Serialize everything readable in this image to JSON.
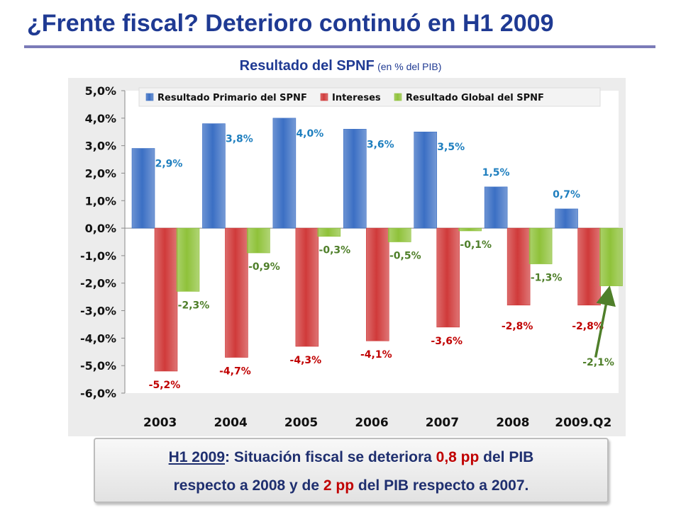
{
  "slide": {
    "title": "¿Frente fiscal? Deterioro continuó en H1 2009"
  },
  "callout": {
    "period": "H1 2009",
    "text1": ": Situación fiscal se deteriora ",
    "value1": "0,8 pp",
    "text2": " del PIB",
    "text3": "respecto a 2008 y de ",
    "value2": "2 pp",
    "text4": " del PIB respecto a 2007."
  },
  "colors": {
    "primario": "#3b6fc4",
    "intereses": "#d03a3a",
    "global": "#8fc23a",
    "label_primario": "#1f7fbf",
    "label_intereses": "#c00000",
    "label_global": "#4f7f2a",
    "arrow": "#4f7f2a"
  },
  "chart_data": {
    "type": "bar",
    "title": "Resultado del SPNF",
    "subtitle": "(en % del PIB)",
    "categories": [
      "2003",
      "2004",
      "2005",
      "2006",
      "2007",
      "2008",
      "2009.Q2"
    ],
    "series": [
      {
        "name": "Resultado Primario del SPNF",
        "values": [
          2.9,
          3.8,
          4.0,
          3.6,
          3.5,
          1.5,
          0.7
        ],
        "labels": [
          "2,9%",
          "3,8%",
          "4,0%",
          "3,6%",
          "3,5%",
          "1,5%",
          "0,7%"
        ]
      },
      {
        "name": "Intereses",
        "values": [
          -5.2,
          -4.7,
          -4.3,
          -4.1,
          -3.6,
          -2.8,
          -2.8
        ],
        "labels": [
          "-5,2%",
          "-4,7%",
          "-4,3%",
          "-4,1%",
          "-3,6%",
          "-2,8%",
          "-2,8%"
        ]
      },
      {
        "name": "Resultado Global del SPNF",
        "values": [
          -2.3,
          -0.9,
          -0.3,
          -0.5,
          -0.1,
          -1.3,
          -2.1
        ],
        "labels": [
          "-2,3%",
          "-0,9%",
          "-0,3%",
          "-0,5%",
          "-0,1%",
          "-1,3%",
          "-2,1%"
        ]
      }
    ],
    "ylim": [
      -6,
      5
    ],
    "yticks": [
      5,
      4,
      3,
      2,
      1,
      0,
      -1,
      -2,
      -3,
      -4,
      -5,
      -6
    ],
    "ytick_labels": [
      "5,0%",
      "4,0%",
      "3,0%",
      "2,0%",
      "1,0%",
      "0,0%",
      "-1,0%",
      "-2,0%",
      "-3,0%",
      "-4,0%",
      "-5,0%",
      "-6,0%"
    ],
    "legend_position": "top",
    "grid": false,
    "annotation": "arrow pointing to the 2009.Q2 Resultado Global bar"
  }
}
